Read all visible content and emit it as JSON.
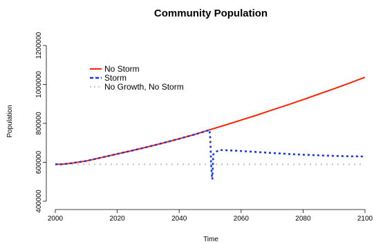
{
  "chart_data": {
    "type": "line",
    "title": "Community Population",
    "xlabel": "Time",
    "ylabel": "Population",
    "xlim": [
      2000,
      2100
    ],
    "ylim": [
      400000,
      1200000
    ],
    "xticks": [
      "2000",
      "2020",
      "2040",
      "2060",
      "2080",
      "2100"
    ],
    "yticks": [
      "400000",
      "600000",
      "800000",
      "1000000",
      "1200000"
    ],
    "legend_position": "top-left",
    "grid": false,
    "series": [
      {
        "name": "No Storm",
        "style": "solid",
        "color": "#ff2200",
        "x": [
          2000,
          2002,
          2005,
          2010,
          2015,
          2020,
          2025,
          2030,
          2035,
          2040,
          2045,
          2050,
          2055,
          2060,
          2065,
          2070,
          2075,
          2080,
          2085,
          2090,
          2095,
          2100
        ],
        "y": [
          590000,
          590000,
          595000,
          607000,
          625000,
          643000,
          661000,
          680000,
          700000,
          721000,
          743000,
          768000,
          792000,
          817000,
          842000,
          869000,
          895000,
          922000,
          950000,
          978000,
          1007000,
          1037000
        ]
      },
      {
        "name": "Storm",
        "style": "dashed",
        "color": "#1133ee",
        "x": [
          2000,
          2002,
          2005,
          2010,
          2015,
          2020,
          2025,
          2030,
          2035,
          2040,
          2045,
          2049.8,
          2050,
          2050.1,
          2050.2,
          2050.3,
          2050.4,
          2050.5,
          2050.6,
          2050.7,
          2051,
          2052,
          2053,
          2055,
          2058,
          2061,
          2065,
          2070,
          2075,
          2080,
          2085,
          2090,
          2095,
          2100
        ],
        "y": [
          590000,
          590000,
          595000,
          607000,
          625000,
          643000,
          661000,
          680000,
          700000,
          721000,
          743000,
          766000,
          730000,
          690000,
          645000,
          600000,
          565000,
          540000,
          520000,
          512000,
          640000,
          655000,
          663000,
          662000,
          660000,
          657000,
          653000,
          648000,
          643000,
          639000,
          636000,
          633000,
          631000,
          630000
        ]
      },
      {
        "name": "No Growth, No Storm",
        "style": "dotted",
        "color": "#cccccc",
        "x": [
          2000,
          2100
        ],
        "y": [
          590000,
          590000
        ]
      }
    ]
  }
}
